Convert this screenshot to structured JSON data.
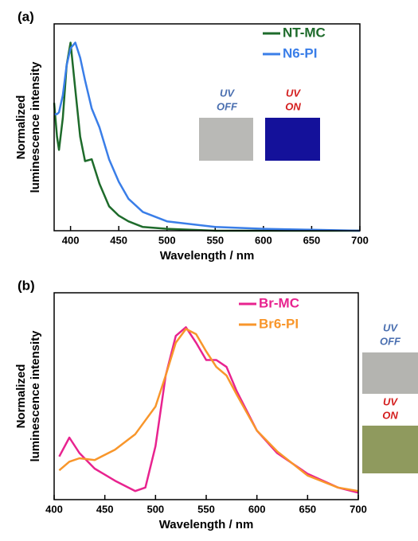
{
  "chart_data": [
    {
      "type": "line",
      "panel_label": "(a)",
      "ylabel": [
        "Normalized",
        "luminescence intensity"
      ],
      "xlabel": "Wavelength / nm",
      "x": [
        383,
        386,
        388,
        392,
        396,
        400,
        405,
        410,
        415,
        422,
        430,
        440,
        450,
        460,
        475,
        500,
        550,
        600,
        650,
        700
      ],
      "series": [
        {
          "name": "NT-MC",
          "color": "#1e6b2b",
          "values": [
            0.68,
            0.5,
            0.43,
            0.6,
            0.88,
            1.0,
            0.75,
            0.5,
            0.37,
            0.38,
            0.25,
            0.13,
            0.08,
            0.05,
            0.02,
            0.01,
            0,
            0,
            0,
            0
          ]
        },
        {
          "name": "N6-PI",
          "color": "#3a7ee8",
          "values": [
            0.62,
            0.62,
            0.63,
            0.72,
            0.88,
            0.97,
            1.0,
            0.92,
            0.8,
            0.65,
            0.55,
            0.38,
            0.26,
            0.17,
            0.1,
            0.05,
            0.02,
            0.01,
            0.005,
            0
          ]
        }
      ],
      "xlim": [
        383,
        700
      ],
      "xticks": [
        400,
        450,
        500,
        550,
        600,
        650,
        700
      ],
      "ylim": [
        0,
        1.1
      ],
      "legend": "upper right",
      "annotations": [
        "UV",
        "OFF",
        "UV",
        "ON"
      ]
    },
    {
      "type": "line",
      "panel_label": "(b)",
      "ylabel": [
        "Normalized",
        "luminescence intensity"
      ],
      "xlabel": "Wavelength / nm",
      "x": [
        405,
        415,
        425,
        440,
        460,
        480,
        490,
        500,
        510,
        520,
        530,
        540,
        550,
        560,
        570,
        580,
        600,
        620,
        650,
        680,
        700
      ],
      "series": [
        {
          "name": "Br-MC",
          "color": "#e8238f",
          "values": [
            0.25,
            0.36,
            0.27,
            0.18,
            0.11,
            0.05,
            0.07,
            0.31,
            0.72,
            0.95,
            1.0,
            0.91,
            0.81,
            0.81,
            0.77,
            0.63,
            0.4,
            0.27,
            0.15,
            0.07,
            0.04
          ]
        },
        {
          "name": "Br6-PI",
          "color": "#f8962b",
          "values": [
            0.17,
            0.22,
            0.24,
            0.23,
            0.29,
            0.38,
            0.46,
            0.54,
            0.72,
            0.91,
            0.99,
            0.96,
            0.86,
            0.77,
            0.72,
            0.61,
            0.4,
            0.28,
            0.14,
            0.07,
            0.05
          ]
        }
      ],
      "xlim": [
        400,
        700
      ],
      "xticks": [
        400,
        450,
        500,
        550,
        600,
        650,
        700
      ],
      "ylim": [
        0,
        1.2
      ],
      "legend": "upper right",
      "annotations": [
        "UV",
        "OFF",
        "UV",
        "ON"
      ]
    }
  ]
}
